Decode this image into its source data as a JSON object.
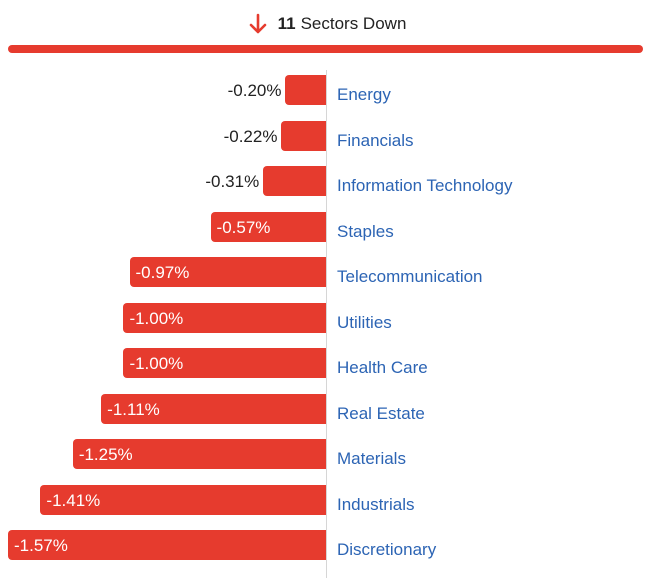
{
  "header": {
    "count": "11",
    "label": "Sectors Down",
    "arrow_icon": "arrow-down-icon"
  },
  "colors": {
    "bar": "#e63b2e",
    "category_text": "#2c64b4",
    "header_bar": "#e63b2e",
    "arrow": "#e63b2e"
  },
  "chart_data": {
    "type": "bar",
    "orientation": "horizontal",
    "categories": [
      "Energy",
      "Financials",
      "Information Technology",
      "Staples",
      "Telecommunication",
      "Utilities",
      "Health Care",
      "Real Estate",
      "Materials",
      "Industrials",
      "Discretionary"
    ],
    "values": [
      -0.2,
      -0.22,
      -0.31,
      -0.57,
      -0.97,
      -1.0,
      -1.0,
      -1.11,
      -1.25,
      -1.41,
      -1.57
    ],
    "value_labels": [
      "-0.20%",
      "-0.22%",
      "-0.31%",
      "-0.57%",
      "-0.97%",
      "-1.00%",
      "-1.00%",
      "-1.11%",
      "-1.25%",
      "-1.41%",
      "-1.57%"
    ],
    "title": "",
    "xlabel": "",
    "ylabel": "",
    "xlim": [
      -1.57,
      0
    ],
    "grid": false,
    "legend": "none"
  }
}
